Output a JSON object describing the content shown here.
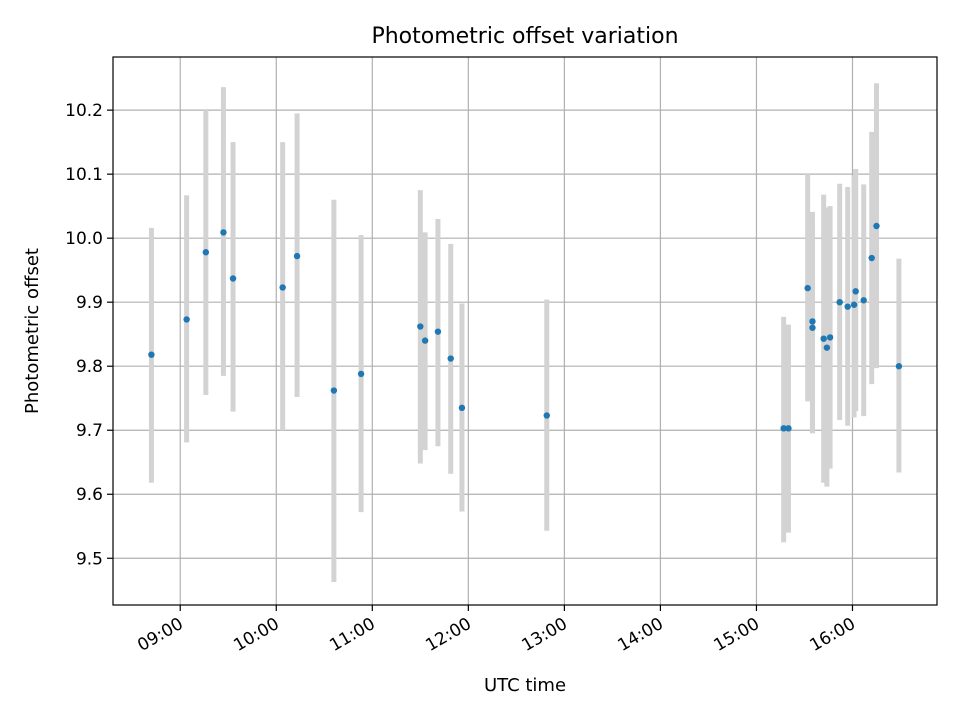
{
  "chart_data": {
    "type": "scatter",
    "title": "Photometric offset variation",
    "xlabel": "UTC time",
    "ylabel": "Photometric offset",
    "x_ticks": [
      "09:00",
      "10:00",
      "11:00",
      "12:00",
      "13:00",
      "14:00",
      "15:00",
      "16:00"
    ],
    "x_tick_hours": [
      9,
      10,
      11,
      12,
      13,
      14,
      15,
      16
    ],
    "y_ticks": [
      "9.5",
      "9.6",
      "9.7",
      "9.8",
      "9.9",
      "10.0",
      "10.1",
      "10.2"
    ],
    "y_tick_values": [
      9.5,
      9.6,
      9.7,
      9.8,
      9.9,
      10.0,
      10.1,
      10.2
    ],
    "xlim": [
      8.3,
      16.88
    ],
    "ylim": [
      9.427,
      10.283
    ],
    "grid": true,
    "marker_color": "#1f77b4",
    "errorbar_color": "#d3d3d3",
    "points": [
      {
        "x": "08:42",
        "y": 9.818,
        "lo": 9.618,
        "hi": 10.016
      },
      {
        "x": "09:04",
        "y": 9.873,
        "lo": 9.681,
        "hi": 10.067
      },
      {
        "x": "09:16",
        "y": 9.978,
        "lo": 9.755,
        "hi": 10.2
      },
      {
        "x": "09:27",
        "y": 10.009,
        "lo": 9.785,
        "hi": 10.236
      },
      {
        "x": "09:33",
        "y": 9.937,
        "lo": 9.729,
        "hi": 10.15
      },
      {
        "x": "10:04",
        "y": 9.923,
        "lo": 9.7,
        "hi": 10.15
      },
      {
        "x": "10:13",
        "y": 9.972,
        "lo": 9.752,
        "hi": 10.195
      },
      {
        "x": "10:36",
        "y": 9.762,
        "lo": 9.463,
        "hi": 10.06
      },
      {
        "x": "10:53",
        "y": 9.788,
        "lo": 9.572,
        "hi": 10.005
      },
      {
        "x": "11:30",
        "y": 9.862,
        "lo": 9.648,
        "hi": 10.075
      },
      {
        "x": "11:33",
        "y": 9.84,
        "lo": 9.669,
        "hi": 10.009
      },
      {
        "x": "11:41",
        "y": 9.854,
        "lo": 9.675,
        "hi": 10.03
      },
      {
        "x": "11:49",
        "y": 9.812,
        "lo": 9.632,
        "hi": 9.991
      },
      {
        "x": "11:56",
        "y": 9.735,
        "lo": 9.573,
        "hi": 9.898
      },
      {
        "x": "12:49",
        "y": 9.723,
        "lo": 9.543,
        "hi": 9.904
      },
      {
        "x": "15:17",
        "y": 9.703,
        "lo": 9.525,
        "hi": 9.877
      },
      {
        "x": "15:20",
        "y": 9.703,
        "lo": 9.54,
        "hi": 9.865
      },
      {
        "x": "15:32",
        "y": 9.922,
        "lo": 9.745,
        "hi": 10.1
      },
      {
        "x": "15:35",
        "y": 9.87,
        "lo": 9.695,
        "hi": 10.041
      },
      {
        "x": "15:35",
        "y": 9.86,
        "lo": 9.7,
        "hi": 10.02
      },
      {
        "x": "15:42",
        "y": 9.843,
        "lo": 9.618,
        "hi": 10.068
      },
      {
        "x": "15:44",
        "y": 9.829,
        "lo": 9.612,
        "hi": 10.048
      },
      {
        "x": "15:46",
        "y": 9.845,
        "lo": 9.64,
        "hi": 10.05
      },
      {
        "x": "15:52",
        "y": 9.9,
        "lo": 9.716,
        "hi": 10.085
      },
      {
        "x": "15:57",
        "y": 9.893,
        "lo": 9.707,
        "hi": 10.08
      },
      {
        "x": "16:01",
        "y": 9.896,
        "lo": 9.72,
        "hi": 10.098
      },
      {
        "x": "16:02",
        "y": 9.917,
        "lo": 9.73,
        "hi": 10.108
      },
      {
        "x": "16:07",
        "y": 9.903,
        "lo": 9.722,
        "hi": 10.084
      },
      {
        "x": "16:12",
        "y": 9.969,
        "lo": 9.772,
        "hi": 10.166
      },
      {
        "x": "16:15",
        "y": 10.019,
        "lo": 9.797,
        "hi": 10.242
      },
      {
        "x": "16:29",
        "y": 9.8,
        "lo": 9.634,
        "hi": 9.968
      }
    ]
  }
}
